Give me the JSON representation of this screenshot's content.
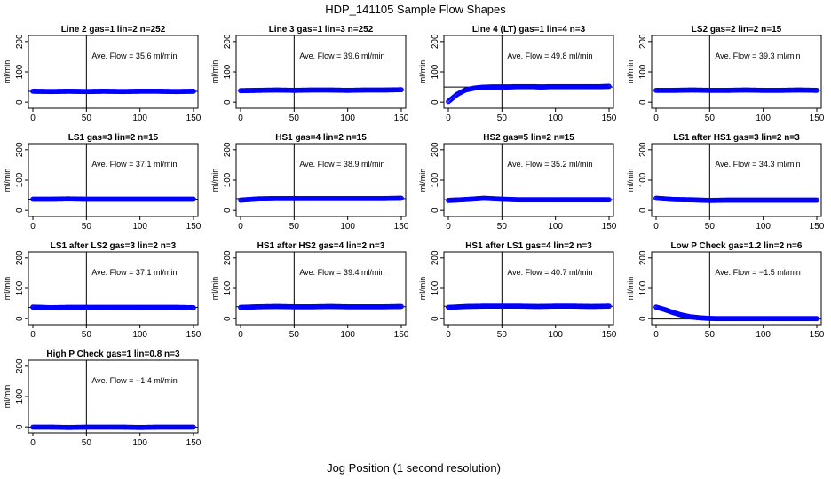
{
  "figure": {
    "title": "HDP_141105  Sample Flow Shapes",
    "xlabel": "Jog Position (1 second resolution)"
  },
  "chart_data": [
    {
      "type": "scatter",
      "title": "Line 2 gas=1 lin=2 n=252",
      "annotation": "Ave. Flow =  35.6  ml/min",
      "ylabel": "ml/min",
      "xlim": [
        0,
        150
      ],
      "ylim": [
        -20,
        220
      ],
      "xticks": [
        0,
        50,
        100,
        150
      ],
      "yticks": [
        0,
        100,
        200
      ],
      "vline": 50,
      "hline": 35.6,
      "points": {
        "x0": 0,
        "x1": 150,
        "y": [
          36,
          35,
          36,
          35,
          36,
          35,
          36,
          36,
          35,
          36
        ]
      },
      "color": "#0000ff"
    },
    {
      "type": "scatter",
      "title": "Line 3 gas=1 lin=3 n=252",
      "annotation": "Ave. Flow =  39.6  ml/min",
      "ylabel": "ml/min",
      "xlim": [
        0,
        150
      ],
      "ylim": [
        -20,
        220
      ],
      "xticks": [
        0,
        50,
        100,
        150
      ],
      "yticks": [
        0,
        100,
        200
      ],
      "vline": 50,
      "hline": 39.6,
      "points": {
        "x0": 0,
        "x1": 150,
        "y": [
          38,
          39,
          40,
          39,
          40,
          40,
          39,
          40,
          40,
          41
        ]
      },
      "color": "#0000ff"
    },
    {
      "type": "scatter",
      "title": "Line 4 (LT) gas=1 lin=4 n=3",
      "annotation": "Ave. Flow =  49.8  ml/min",
      "ylabel": "ml/min",
      "xlim": [
        0,
        150
      ],
      "ylim": [
        -20,
        220
      ],
      "xticks": [
        0,
        50,
        100,
        150
      ],
      "yticks": [
        0,
        100,
        200
      ],
      "vline": 50,
      "hline": 49.8,
      "points": {
        "x0": 0,
        "x1": 150,
        "y": [
          2,
          25,
          40,
          46,
          49,
          50,
          50,
          50,
          51,
          51,
          51,
          50,
          51,
          51,
          51,
          51,
          51,
          51,
          51,
          52
        ]
      },
      "color": "#0000ff"
    },
    {
      "type": "scatter",
      "title": "LS2 gas=2 lin=2 n=15",
      "annotation": "Ave. Flow =  39.3  ml/min",
      "ylabel": "ml/min",
      "xlim": [
        0,
        150
      ],
      "ylim": [
        -20,
        220
      ],
      "xticks": [
        0,
        50,
        100,
        150
      ],
      "yticks": [
        0,
        100,
        200
      ],
      "vline": 50,
      "hline": 39.3,
      "points": {
        "x0": 0,
        "x1": 150,
        "y": [
          39,
          39,
          40,
          39,
          39,
          40,
          39,
          39,
          40,
          39
        ]
      },
      "color": "#0000ff"
    },
    {
      "type": "scatter",
      "title": "LS1 gas=3 lin=2 n=15",
      "annotation": "Ave. Flow =  37.1  ml/min",
      "ylabel": "ml/min",
      "xlim": [
        0,
        150
      ],
      "ylim": [
        -20,
        220
      ],
      "xticks": [
        0,
        50,
        100,
        150
      ],
      "yticks": [
        0,
        100,
        200
      ],
      "vline": 50,
      "hline": 37.1,
      "points": {
        "x0": 0,
        "x1": 150,
        "y": [
          37,
          37,
          38,
          37,
          37,
          37,
          37,
          37,
          37,
          37
        ]
      },
      "color": "#0000ff"
    },
    {
      "type": "scatter",
      "title": "HS1 gas=4 lin=2 n=15",
      "annotation": "Ave. Flow =  38.9  ml/min",
      "ylabel": "ml/min",
      "xlim": [
        0,
        150
      ],
      "ylim": [
        -20,
        220
      ],
      "xticks": [
        0,
        50,
        100,
        150
      ],
      "yticks": [
        0,
        100,
        200
      ],
      "vline": 50,
      "hline": 38.9,
      "points": {
        "x0": 0,
        "x1": 150,
        "y": [
          34,
          38,
          39,
          39,
          39,
          39,
          39,
          39,
          39,
          40
        ]
      },
      "color": "#0000ff"
    },
    {
      "type": "scatter",
      "title": "HS2 gas=5 lin=2 n=15",
      "annotation": "Ave. Flow =  35.2  ml/min",
      "ylabel": "ml/min",
      "xlim": [
        0,
        150
      ],
      "ylim": [
        -20,
        220
      ],
      "xticks": [
        0,
        50,
        100,
        150
      ],
      "yticks": [
        0,
        100,
        200
      ],
      "vline": 50,
      "hline": 35.2,
      "points": {
        "x0": 0,
        "x1": 150,
        "y": [
          33,
          36,
          40,
          37,
          35,
          35,
          35,
          35,
          35,
          35
        ]
      },
      "color": "#0000ff"
    },
    {
      "type": "scatter",
      "title": "LS1 after HS1 gas=3 lin=2 n=3",
      "annotation": "Ave. Flow =  34.3  ml/min",
      "ylabel": "ml/min",
      "xlim": [
        0,
        150
      ],
      "ylim": [
        -20,
        220
      ],
      "xticks": [
        0,
        50,
        100,
        150
      ],
      "yticks": [
        0,
        100,
        200
      ],
      "vline": 50,
      "hline": 34.3,
      "points": {
        "x0": 0,
        "x1": 150,
        "y": [
          40,
          36,
          35,
          33,
          34,
          34,
          34,
          34,
          34,
          34
        ]
      },
      "color": "#0000ff"
    },
    {
      "type": "scatter",
      "title": "LS1 after LS2 gas=3 lin=2 n=3",
      "annotation": "Ave. Flow =  37.1  ml/min",
      "ylabel": "ml/min",
      "xlim": [
        0,
        150
      ],
      "ylim": [
        -20,
        220
      ],
      "xticks": [
        0,
        50,
        100,
        150
      ],
      "yticks": [
        0,
        100,
        200
      ],
      "vline": 50,
      "hline": 37.1,
      "points": {
        "x0": 0,
        "x1": 150,
        "y": [
          38,
          36,
          37,
          37,
          37,
          37,
          37,
          37,
          37,
          36
        ]
      },
      "color": "#0000ff"
    },
    {
      "type": "scatter",
      "title": "HS1 after HS2 gas=4 lin=2 n=3",
      "annotation": "Ave. Flow =  39.4  ml/min",
      "ylabel": "ml/min",
      "xlim": [
        0,
        150
      ],
      "ylim": [
        -20,
        220
      ],
      "xticks": [
        0,
        50,
        100,
        150
      ],
      "yticks": [
        0,
        100,
        200
      ],
      "vline": 50,
      "hline": 39.4,
      "points": {
        "x0": 0,
        "x1": 150,
        "y": [
          37,
          39,
          40,
          39,
          39,
          40,
          39,
          39,
          39,
          40
        ]
      },
      "color": "#0000ff"
    },
    {
      "type": "scatter",
      "title": "HS1 after LS1 gas=4 lin=2 n=3",
      "annotation": "Ave. Flow =  40.7  ml/min",
      "ylabel": "ml/min",
      "xlim": [
        0,
        150
      ],
      "ylim": [
        -20,
        220
      ],
      "xticks": [
        0,
        50,
        100,
        150
      ],
      "yticks": [
        0,
        100,
        200
      ],
      "vline": 50,
      "hline": 40.7,
      "points": {
        "x0": 0,
        "x1": 150,
        "y": [
          37,
          40,
          41,
          41,
          41,
          40,
          41,
          41,
          40,
          41
        ]
      },
      "color": "#0000ff"
    },
    {
      "type": "scatter",
      "title": "Low P Check gas=1.2 lin=2 n=6",
      "annotation": "Ave. Flow =  −1.5  ml/min",
      "ylabel": "ml/min",
      "xlim": [
        0,
        150
      ],
      "ylim": [
        -20,
        220
      ],
      "xticks": [
        0,
        50,
        100,
        150
      ],
      "yticks": [
        0,
        100,
        200
      ],
      "vline": 50,
      "hline": -1.5,
      "points": {
        "x0": 0,
        "x1": 150,
        "y": [
          38,
          30,
          20,
          12,
          6,
          3,
          1,
          0,
          0,
          0,
          0,
          0,
          0,
          0,
          0,
          0,
          0,
          0,
          0,
          0
        ]
      },
      "color": "#0000ff"
    },
    {
      "type": "scatter",
      "title": "High P Check gas=1 lin=0.8 n=3",
      "annotation": "Ave. Flow =  −1.4  ml/min",
      "ylabel": "ml/min",
      "xlim": [
        0,
        150
      ],
      "ylim": [
        -20,
        220
      ],
      "xticks": [
        0,
        50,
        100,
        150
      ],
      "yticks": [
        0,
        100,
        200
      ],
      "vline": 50,
      "hline": -1.4,
      "points": {
        "x0": 0,
        "x1": 150,
        "y": [
          -1,
          -1,
          -2,
          -1,
          -1,
          -1,
          -2,
          -1,
          -1,
          -1
        ]
      },
      "color": "#0000ff"
    }
  ]
}
